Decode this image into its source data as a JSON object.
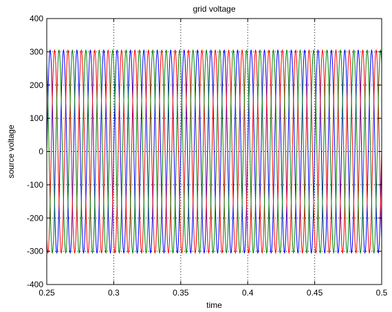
{
  "chart_data": {
    "type": "line",
    "title": "grid voltage",
    "xlabel": "time",
    "ylabel": "source voltage",
    "xlim": [
      0.25,
      0.5
    ],
    "ylim": [
      -400,
      400
    ],
    "xticks": [
      "0.25",
      "0.3",
      "0.35",
      "0.4",
      "0.45",
      "0.5"
    ],
    "yticks": [
      "400",
      "300",
      "200",
      "100",
      "0",
      "-100",
      "-200",
      "-300",
      "-400"
    ],
    "grid": "dotted",
    "legend": "none",
    "waveform": "three-phase sinusoid",
    "amplitude": 305,
    "frequency_hz": 100,
    "series": [
      {
        "color": "#0000ff",
        "phase_deg": 0
      },
      {
        "color": "#ff0000",
        "phase_deg": -120
      },
      {
        "color": "#008000",
        "phase_deg": 120
      }
    ]
  }
}
